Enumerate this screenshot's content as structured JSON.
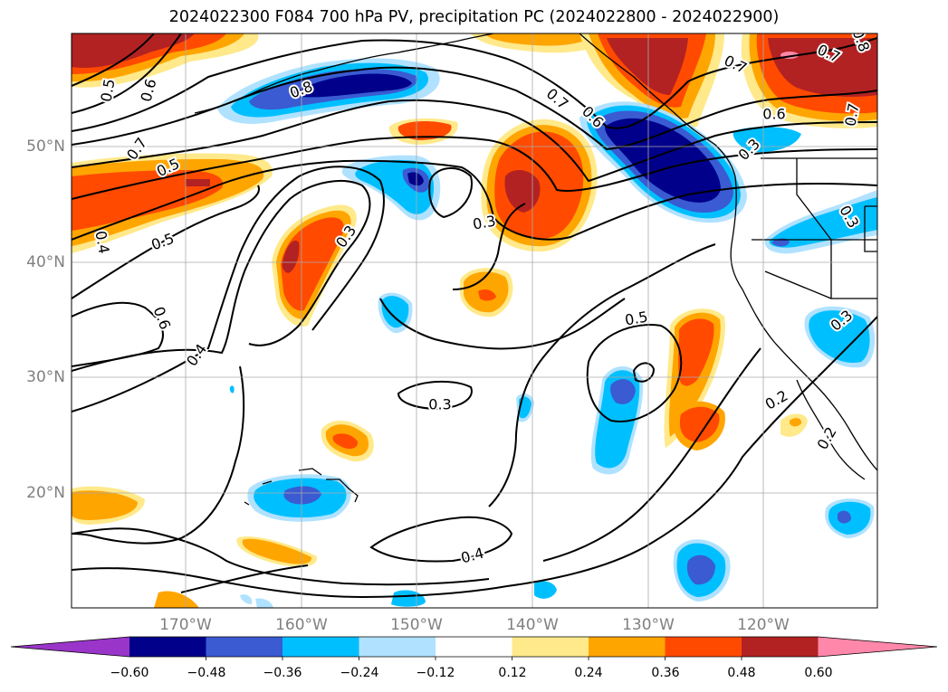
{
  "title": "2024022300 F084 700 hPa PV, precipitation PC (2024022800 - 2024022900)",
  "axes": {
    "lat_labels": [
      "50°N",
      "40°N",
      "30°N",
      "20°N"
    ],
    "lon_labels": [
      "170°W",
      "160°W",
      "150°W",
      "140°W",
      "130°W",
      "120°W"
    ]
  },
  "colorbar": {
    "ticks": [
      "−0.60",
      "−0.48",
      "−0.36",
      "−0.24",
      "−0.12",
      "0.12",
      "0.24",
      "0.36",
      "0.48",
      "0.60"
    ],
    "colors": [
      "#9a35c9",
      "#00008b",
      "#3a5bd2",
      "#00bfff",
      "#b0e2ff",
      "#ffffff",
      "#ffe98a",
      "#ffa500",
      "#ff4a00",
      "#b22222",
      "#ff88aa"
    ]
  },
  "contour_labels": [
    {
      "text": "0.5"
    },
    {
      "text": "0.6"
    },
    {
      "text": "0.7"
    },
    {
      "text": "0.5"
    },
    {
      "text": "0.5"
    },
    {
      "text": "0.4"
    },
    {
      "text": "0.8"
    },
    {
      "text": "0.3"
    },
    {
      "text": "0.3"
    },
    {
      "text": "0.7"
    },
    {
      "text": "0.6"
    },
    {
      "text": "0.7"
    },
    {
      "text": "0.7"
    },
    {
      "text": "0.6"
    },
    {
      "text": "0.8"
    },
    {
      "text": "0.7"
    },
    {
      "text": "0.3"
    },
    {
      "text": "0.3"
    },
    {
      "text": "0.3"
    },
    {
      "text": "0.6"
    },
    {
      "text": "0.4"
    },
    {
      "text": "0.5"
    },
    {
      "text": "0.3"
    },
    {
      "text": "0.4"
    },
    {
      "text": "0.2"
    },
    {
      "text": "0.2"
    }
  ]
}
